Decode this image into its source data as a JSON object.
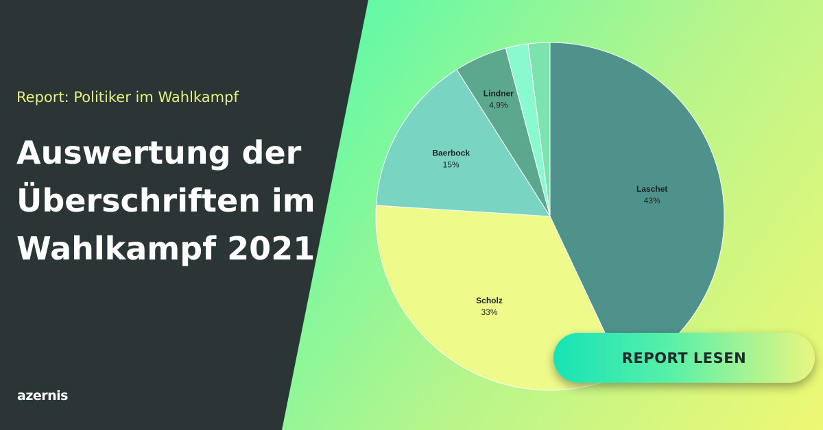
{
  "header": {
    "kicker": "Report: Politiker im Wahlkampf",
    "title_lines": [
      "Auswertung der",
      "Überschriften im",
      "Wahlkampf 2021"
    ]
  },
  "brand": {
    "logo_text": "azernis"
  },
  "cta": {
    "label": "REPORT LESEN"
  },
  "colors": {
    "background": "#2b3535",
    "kicker": "#e6f27c",
    "laschet": "#4f928b",
    "scholz": "#eefb8b",
    "baerbock": "#79d5c1",
    "lindner": "#5ca88f",
    "other1": "#8af9cf",
    "other2": "#7de3ae"
  },
  "chart_data": {
    "type": "pie",
    "title": "",
    "slices": [
      {
        "label": "Laschet",
        "value": 43,
        "value_text": "43%",
        "color": "#4f928b"
      },
      {
        "label": "Scholz",
        "value": 33,
        "value_text": "33%",
        "color": "#eefb8b"
      },
      {
        "label": "Baerbock",
        "value": 15,
        "value_text": "15%",
        "color": "#79d5c1"
      },
      {
        "label": "Lindner",
        "value": 4.9,
        "value_text": "4,9%",
        "color": "#5ca88f"
      },
      {
        "label": "",
        "value": 2.1,
        "value_text": "",
        "color": "#8af9cf"
      },
      {
        "label": "",
        "value": 2.0,
        "value_text": "",
        "color": "#7de3ae"
      }
    ]
  }
}
